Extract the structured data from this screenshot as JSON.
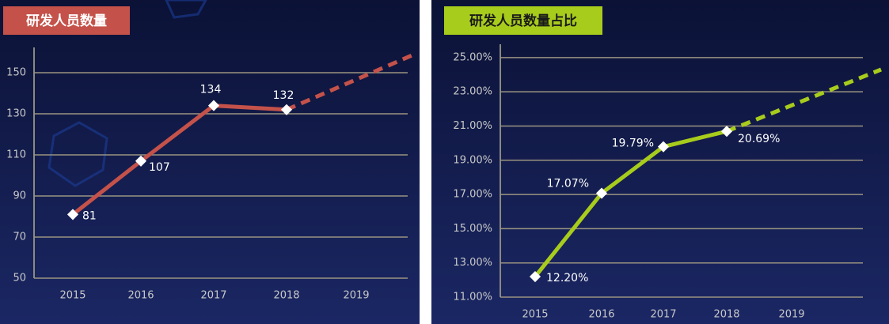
{
  "chart_data": [
    {
      "type": "line",
      "title": "研发人员数量",
      "categories": [
        "2015",
        "2016",
        "2017",
        "2018",
        "2019"
      ],
      "values": [
        81,
        107,
        134,
        132,
        null
      ],
      "color": "#c4524a",
      "ylim": [
        50,
        160
      ],
      "yticks": [
        50,
        70,
        90,
        110,
        130,
        150
      ],
      "grid": true
    },
    {
      "type": "line",
      "title": "研发人员数量占比",
      "categories": [
        "2015",
        "2016",
        "2017",
        "2018",
        "2019"
      ],
      "values": [
        12.2,
        17.07,
        19.79,
        20.69,
        null
      ],
      "value_labels": [
        "12.20%",
        "17.07%",
        "19.79%",
        "20.69%",
        null
      ],
      "color": "#a8cc1c",
      "ylim": [
        11,
        25.5
      ],
      "yticks": [
        {
          "value": 11,
          "label": "11.00%"
        },
        {
          "value": 13,
          "label": "13.00%"
        },
        {
          "value": 15,
          "label": "15.00%"
        },
        {
          "value": 17,
          "label": "17.00%"
        },
        {
          "value": 19,
          "label": "19.00%"
        },
        {
          "value": 21,
          "label": "21.00%"
        },
        {
          "value": 23,
          "label": "23.00%"
        },
        {
          "value": 25,
          "label": "25.00%"
        }
      ],
      "grid": true
    }
  ]
}
